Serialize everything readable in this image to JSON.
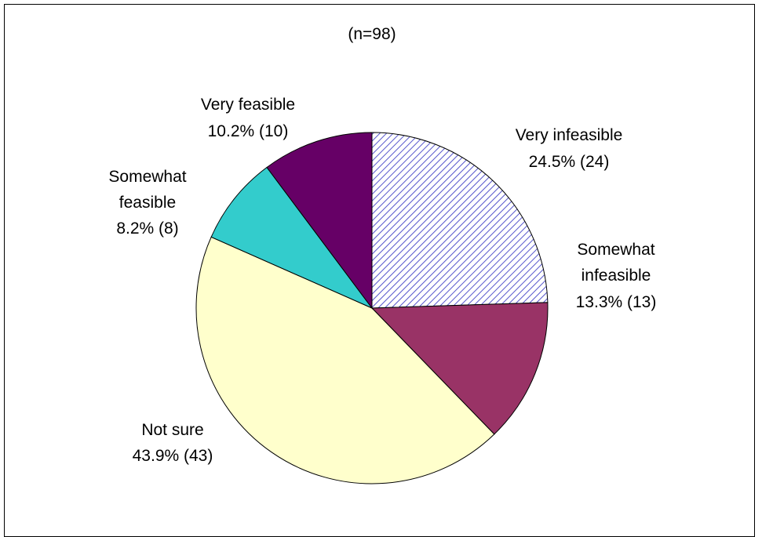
{
  "chart_data": {
    "type": "pie",
    "title": "",
    "subtitle": "(n=98)",
    "start": "12 o'clock",
    "direction": "clockwise",
    "slices": [
      {
        "label": "Very infeasible",
        "percent_label": "24.5% (24)",
        "count": 24,
        "percent": 24.5,
        "color": "#6666cc",
        "pattern": "hatched"
      },
      {
        "label": "Somewhat infeasible",
        "percent_label": "13.3% (13)",
        "count": 13,
        "percent": 13.3,
        "color": "#993366",
        "pattern": "solid"
      },
      {
        "label": "Not sure",
        "percent_label": "43.9% (43)",
        "count": 43,
        "percent": 43.9,
        "color": "#ffffcc",
        "pattern": "solid"
      },
      {
        "label": "Somewhat feasible",
        "percent_label": "8.2% (8)",
        "count": 8,
        "percent": 8.2,
        "color": "#33cccc",
        "pattern": "solid"
      },
      {
        "label": "Very feasible",
        "percent_label": "10.2% (10)",
        "count": 10,
        "percent": 10.2,
        "color": "#660066",
        "pattern": "solid"
      }
    ]
  }
}
